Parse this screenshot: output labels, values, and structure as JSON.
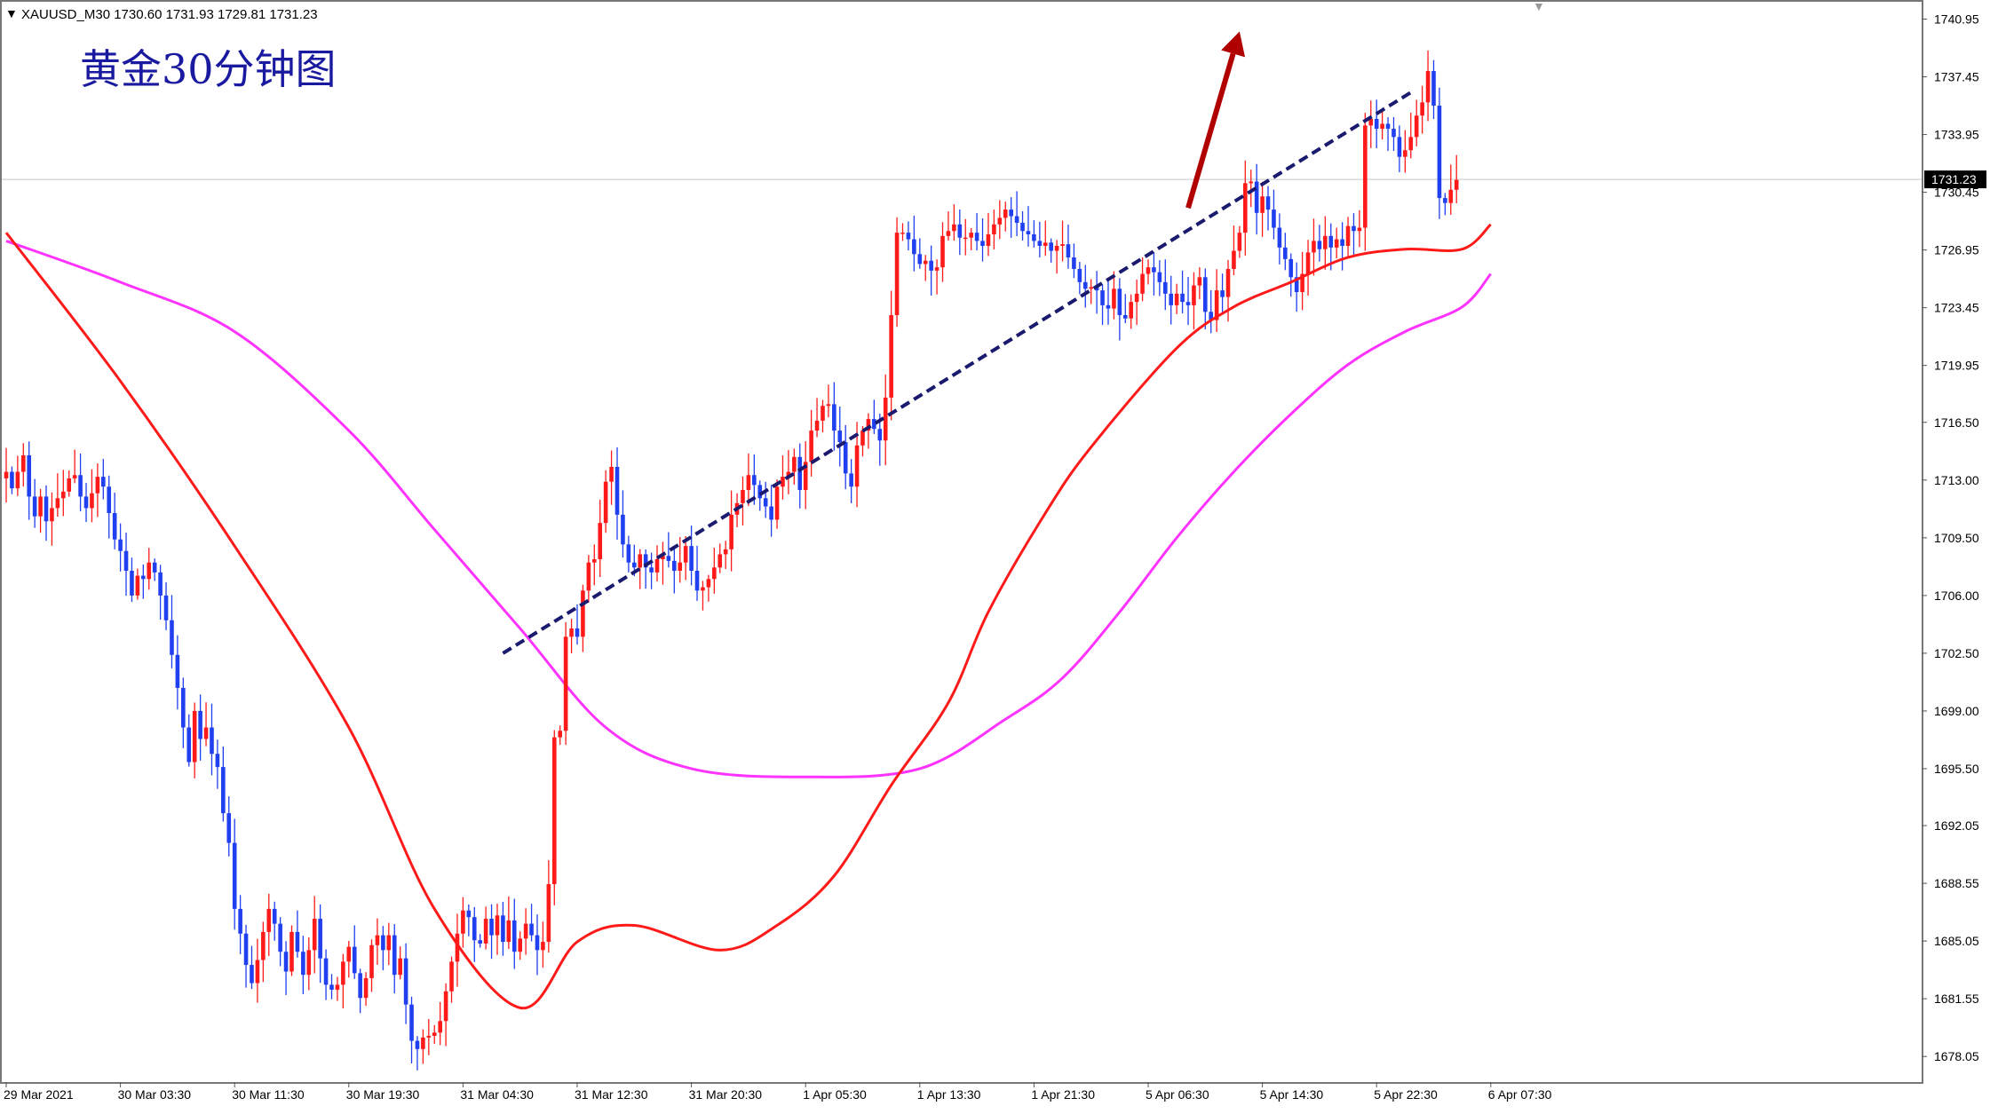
{
  "header": {
    "symbol_line": "XAUUSD_M30  1730.60 1731.93 1729.81 1731.23",
    "chart_title": "黄金30分钟图"
  },
  "colors": {
    "bull": "#ff1a1a",
    "bear": "#1f3ff0",
    "ma_fast": "#ff1a1a",
    "ma_slow": "#ff33ff",
    "trendline": "#1a1a6e",
    "arrow": "#b00000",
    "title": "#1a1aa0"
  },
  "chart_data": {
    "type": "candlestick",
    "symbol": "XAUUSD",
    "timeframe": "M30",
    "ohlc_last": {
      "open": 1730.6,
      "high": 1731.93,
      "low": 1729.81,
      "close": 1731.23
    },
    "current_price_label": "1731.23",
    "current_price": 1731.23,
    "ylim": [
      1676.5,
      1742.0
    ],
    "y_ticks": [
      "1740.95",
      "1737.45",
      "1733.95",
      "1730.45",
      "1726.95",
      "1723.45",
      "1719.95",
      "1716.50",
      "1713.00",
      "1709.50",
      "1706.00",
      "1702.50",
      "1699.00",
      "1695.50",
      "1692.05",
      "1688.55",
      "1685.05",
      "1681.55",
      "1678.05"
    ],
    "x_ticks": [
      {
        "label": "29 Mar 2021",
        "index": 0
      },
      {
        "label": "30 Mar 03:30",
        "index": 20
      },
      {
        "label": "30 Mar 11:30",
        "index": 40
      },
      {
        "label": "30 Mar 19:30",
        "index": 60
      },
      {
        "label": "31 Mar 04:30",
        "index": 80
      },
      {
        "label": "31 Mar 12:30",
        "index": 100
      },
      {
        "label": "31 Mar 20:30",
        "index": 120
      },
      {
        "label": "1 Apr 05:30",
        "index": 140
      },
      {
        "label": "1 Apr 13:30",
        "index": 160
      },
      {
        "label": "1 Apr 21:30",
        "index": 180
      },
      {
        "label": "5 Apr 06:30",
        "index": 200
      },
      {
        "label": "5 Apr 14:30",
        "index": 220
      },
      {
        "label": "5 Apr 22:30",
        "index": 240
      },
      {
        "label": "6 Apr 07:30",
        "index": 260
      }
    ],
    "closes": [
      1713.5,
      1712.5,
      1713.5,
      1714.5,
      1712.0,
      1710.8,
      1712.0,
      1710.5,
      1711.3,
      1711.9,
      1712.3,
      1713.1,
      1713.3,
      1712.0,
      1711.3,
      1712.2,
      1713.2,
      1712.6,
      1711.0,
      1709.4,
      1708.7,
      1707.5,
      1706.0,
      1707.2,
      1707.0,
      1708.0,
      1707.4,
      1706.0,
      1704.5,
      1702.4,
      1700.4,
      1698.0,
      1695.9,
      1699.0,
      1697.3,
      1698.0,
      1696.4,
      1695.6,
      1692.8,
      1691.0,
      1687.0,
      1685.5,
      1683.6,
      1682.5,
      1683.9,
      1685.6,
      1687.0,
      1686.1,
      1684.4,
      1683.2,
      1685.6,
      1684.4,
      1683.0,
      1684.5,
      1686.4,
      1684.0,
      1682.4,
      1682.1,
      1682.4,
      1683.8,
      1684.7,
      1683.1,
      1681.6,
      1682.8,
      1684.8,
      1685.4,
      1684.5,
      1685.4,
      1683.0,
      1684.0,
      1681.2,
      1679.0,
      1678.5,
      1679.2,
      1679.3,
      1679.5,
      1680.2,
      1682.0,
      1683.8,
      1685.5,
      1686.9,
      1686.5,
      1685.1,
      1684.9,
      1686.4,
      1685.4,
      1686.6,
      1685.0,
      1686.3,
      1684.4,
      1685.2,
      1686.1,
      1685.4,
      1684.5,
      1685.0,
      1688.5,
      1697.4,
      1697.8,
      1703.5,
      1704.0,
      1703.5,
      1706.3,
      1708.0,
      1708.2,
      1710.4,
      1712.9,
      1713.8,
      1710.9,
      1709.1,
      1708.0,
      1707.7,
      1708.5,
      1707.7,
      1707.4,
      1708.2,
      1708.4,
      1708.1,
      1707.5,
      1708.0,
      1709.0,
      1707.5,
      1706.3,
      1706.5,
      1707.0,
      1707.7,
      1708.5,
      1708.8,
      1710.9,
      1711.6,
      1712.4,
      1713.3,
      1712.7,
      1711.9,
      1711.4,
      1710.6,
      1712.6,
      1713.2,
      1713.5,
      1714.4,
      1712.4,
      1714.1,
      1716.0,
      1716.6,
      1717.5,
      1717.6,
      1716.0,
      1715.3,
      1713.4,
      1712.6,
      1715.1,
      1716.0,
      1716.7,
      1716.1,
      1715.4,
      1718.0,
      1723.0,
      1728.0,
      1728.0,
      1727.6,
      1726.7,
      1726.1,
      1726.3,
      1725.7,
      1725.9,
      1727.8,
      1728.1,
      1728.5,
      1727.7,
      1727.7,
      1728.0,
      1727.5,
      1727.2,
      1727.9,
      1728.5,
      1728.9,
      1729.4,
      1729.0,
      1728.6,
      1728.1,
      1727.9,
      1727.5,
      1727.2,
      1727.4,
      1726.9,
      1727.2,
      1727.3,
      1726.5,
      1725.8,
      1725.0,
      1724.6,
      1724.7,
      1724.5,
      1723.6,
      1723.4,
      1724.6,
      1723.0,
      1722.8,
      1723.8,
      1724.3,
      1725.5,
      1725.9,
      1725.6,
      1725.0,
      1724.3,
      1723.6,
      1724.3,
      1723.8,
      1723.6,
      1724.8,
      1725.3,
      1723.2,
      1722.7,
      1724.5,
      1724.1,
      1725.8,
      1726.9,
      1728.0,
      1731.0,
      1731.1,
      1729.2,
      1730.2,
      1729.4,
      1728.3,
      1727.1,
      1726.4,
      1725.3,
      1724.4,
      1725.5,
      1726.8,
      1727.5,
      1727.0,
      1727.8,
      1727.1,
      1727.6,
      1727.2,
      1728.4,
      1728.1,
      1728.3,
      1734.5,
      1734.9,
      1734.3,
      1734.6,
      1734.3,
      1733.8,
      1732.6,
      1733.0,
      1733.8,
      1735.1,
      1735.9,
      1737.8,
      1735.7,
      1730.1,
      1729.8,
      1730.6,
      1731.2
    ],
    "ma_fast_points": [
      [
        0,
        1728
      ],
      [
        20,
        1719
      ],
      [
        40,
        1709
      ],
      [
        60,
        1698
      ],
      [
        75,
        1687
      ],
      [
        90,
        1681
      ],
      [
        100,
        1685
      ],
      [
        110,
        1686
      ],
      [
        125,
        1684.5
      ],
      [
        135,
        1686
      ],
      [
        145,
        1689
      ],
      [
        155,
        1694.5
      ],
      [
        165,
        1699.5
      ],
      [
        172,
        1705
      ],
      [
        182,
        1711
      ],
      [
        190,
        1715
      ],
      [
        205,
        1721
      ],
      [
        215,
        1723.5
      ],
      [
        225,
        1725
      ],
      [
        235,
        1726.5
      ],
      [
        245,
        1727
      ],
      [
        255,
        1727
      ],
      [
        260,
        1728.5
      ]
    ],
    "ma_slow_points": [
      [
        0,
        1727.5
      ],
      [
        20,
        1725
      ],
      [
        40,
        1722
      ],
      [
        60,
        1716
      ],
      [
        75,
        1710
      ],
      [
        90,
        1704
      ],
      [
        105,
        1698
      ],
      [
        120,
        1695.5
      ],
      [
        140,
        1695
      ],
      [
        160,
        1695.5
      ],
      [
        175,
        1698.5
      ],
      [
        185,
        1701
      ],
      [
        195,
        1705
      ],
      [
        205,
        1709.5
      ],
      [
        215,
        1713.5
      ],
      [
        225,
        1717
      ],
      [
        235,
        1720
      ],
      [
        245,
        1722
      ],
      [
        255,
        1723.5
      ],
      [
        260,
        1725.5
      ]
    ],
    "trendline": [
      [
        87,
        1702.5
      ],
      [
        246,
        1736.5
      ]
    ],
    "arrow": [
      [
        207,
        1729.5
      ],
      [
        216,
        1740.2
      ]
    ]
  }
}
